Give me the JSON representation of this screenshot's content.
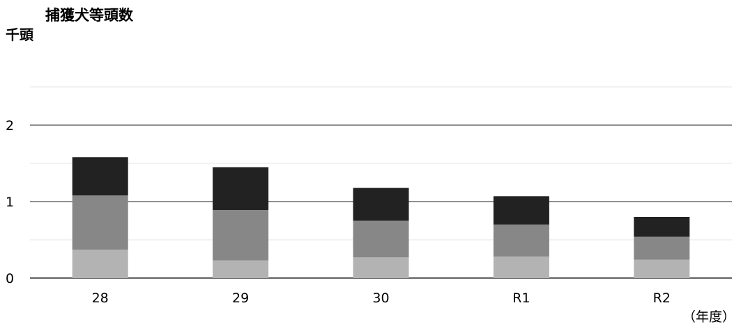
{
  "chart_data": {
    "type": "bar",
    "stacked": true,
    "title": "捕獲犬等頭数",
    "ylabel": "千頭",
    "xlabel": "（年度）",
    "categories": [
      "28",
      "29",
      "30",
      "R1",
      "R2"
    ],
    "y_ticks": [
      "0",
      "1",
      "2"
    ],
    "ylim": [
      0,
      2.5
    ],
    "grid": true,
    "series": [
      {
        "color": "#b3b3b3",
        "values": [
          0.37,
          0.23,
          0.27,
          0.28,
          0.24
        ]
      },
      {
        "color": "#878787",
        "values": [
          0.71,
          0.66,
          0.48,
          0.42,
          0.3
        ]
      },
      {
        "color": "#222222",
        "values": [
          0.5,
          0.56,
          0.43,
          0.37,
          0.26
        ]
      }
    ]
  }
}
